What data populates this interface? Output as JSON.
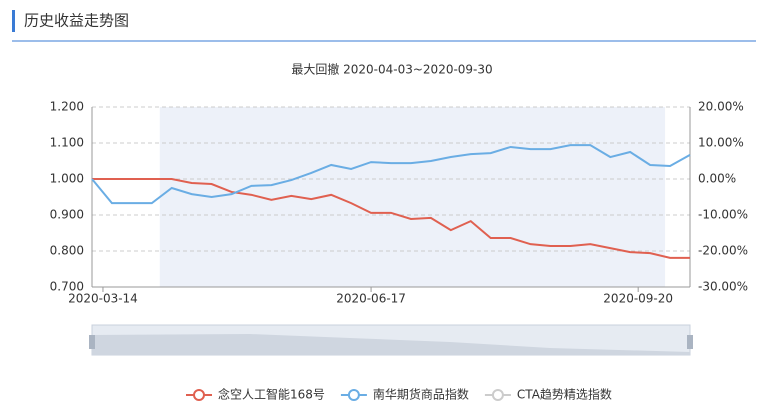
{
  "header": {
    "title": "历史收益走势图"
  },
  "chart_data": {
    "type": "line",
    "subtitle": "最大回撤   2020-04-03~2020-09-30",
    "xlim": [
      0,
      30
    ],
    "xticks": [
      {
        "value": 0.55,
        "label": "2020-03-14"
      },
      {
        "value": 14,
        "label": "2020-06-17"
      },
      {
        "value": 27.4,
        "label": "2020-09-20"
      }
    ],
    "ylim": [
      0.7,
      1.2
    ],
    "yticks": [
      {
        "value": 0.7,
        "label": "0.700"
      },
      {
        "value": 0.8,
        "label": "0.800"
      },
      {
        "value": 0.9,
        "label": "0.900"
      },
      {
        "value": 1.0,
        "label": "1.000"
      },
      {
        "value": 1.1,
        "label": "1.100"
      },
      {
        "value": 1.2,
        "label": "1.200"
      }
    ],
    "y2lim": [
      -30,
      20
    ],
    "y2ticks": [
      {
        "value": 20,
        "label": "20.00%"
      },
      {
        "value": 10,
        "label": "10.00%"
      },
      {
        "value": 0,
        "label": "0.00%"
      },
      {
        "value": -10,
        "label": "-10.00%"
      },
      {
        "value": -20,
        "label": "-20.00%"
      },
      {
        "value": -30,
        "label": "-30.00%"
      }
    ],
    "shade": [
      3.4,
      28.75
    ],
    "grid": true,
    "series": [
      {
        "name": "念空人工智能168号",
        "color": "#e06050",
        "values": [
          1.0,
          1.0,
          1.0,
          1.0,
          1.0,
          0.989,
          0.986,
          0.964,
          0.956,
          0.942,
          0.953,
          0.944,
          0.956,
          0.933,
          0.906,
          0.906,
          0.889,
          0.892,
          0.858,
          0.883,
          0.836,
          0.836,
          0.819,
          0.814,
          0.814,
          0.819,
          0.808,
          0.797,
          0.794,
          0.781,
          0.781
        ]
      },
      {
        "name": "南华期货商品指数",
        "color": "#6aade4",
        "values": [
          1.0,
          0.933,
          0.933,
          0.933,
          0.975,
          0.958,
          0.95,
          0.958,
          0.981,
          0.983,
          0.997,
          1.017,
          1.039,
          1.028,
          1.047,
          1.044,
          1.044,
          1.05,
          1.061,
          1.069,
          1.072,
          1.089,
          1.083,
          1.083,
          1.094,
          1.094,
          1.061,
          1.075,
          1.039,
          1.036,
          1.067
        ]
      }
    ],
    "hidden_series": [
      {
        "name": "CTA趋势精选指数",
        "color": "#cccccc"
      }
    ]
  }
}
